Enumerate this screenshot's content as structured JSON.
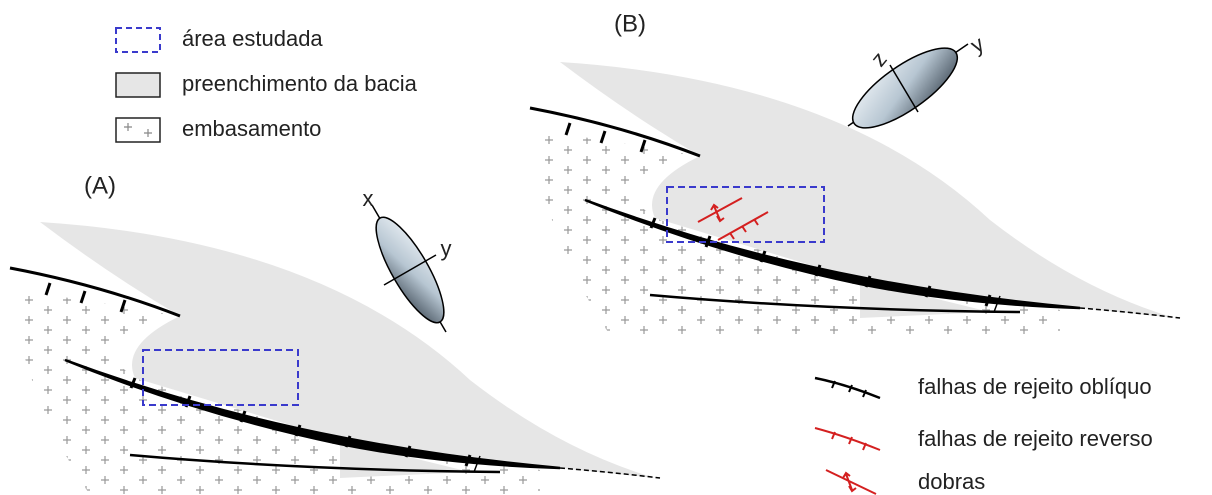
{
  "legend_top": [
    {
      "label": "área estudada"
    },
    {
      "label": "preenchimento da bacia"
    },
    {
      "label": "embasamento"
    }
  ],
  "panels": [
    {
      "label": "(A)",
      "ellipsoid_axes": [
        "x",
        "y"
      ]
    },
    {
      "label": "(B)",
      "ellipsoid_axes": [
        "z",
        "y"
      ]
    }
  ],
  "legend_bottom": [
    {
      "label": "falhas de rejeito oblíquo"
    },
    {
      "label": "falhas de rejeito reverso"
    },
    {
      "label": "dobras"
    }
  ]
}
